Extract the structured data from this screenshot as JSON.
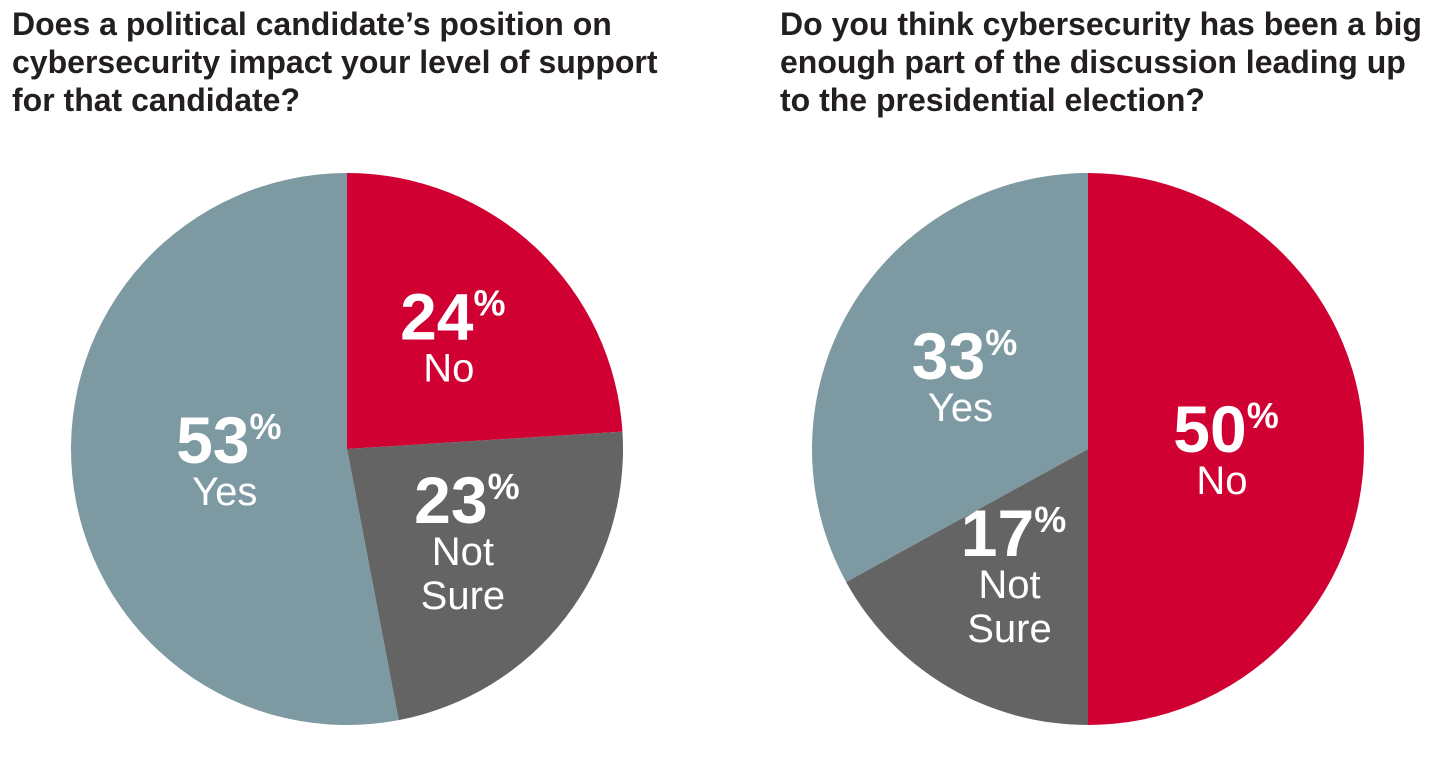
{
  "chart_data": [
    {
      "type": "pie",
      "title_lines": [
        "Does a political candidate’s position on",
        "cybersecurity impact your level of support",
        "for that candidate?"
      ],
      "slices": [
        {
          "label": "No",
          "label_lines": [
            "No"
          ],
          "value": 24,
          "value_text": "24",
          "unit": "%",
          "color": "#d10033"
        },
        {
          "label": "Not Sure",
          "label_lines": [
            "Not",
            "Sure"
          ],
          "value": 23,
          "value_text": "23",
          "unit": "%",
          "color": "#646464"
        },
        {
          "label": "Yes",
          "label_lines": [
            "Yes"
          ],
          "value": 53,
          "value_text": "53",
          "unit": "%",
          "color": "#7d99a2"
        }
      ],
      "start": "12 o'clock",
      "direction": "clockwise"
    },
    {
      "type": "pie",
      "title_lines": [
        "Do you think cybersecurity has been a big",
        "enough part of the discussion leading up",
        "to the presidential election?"
      ],
      "slices": [
        {
          "label": "No",
          "label_lines": [
            "No"
          ],
          "value": 50,
          "value_text": "50",
          "unit": "%",
          "color": "#d10033"
        },
        {
          "label": "Not Sure",
          "label_lines": [
            "Not",
            "Sure"
          ],
          "value": 17,
          "value_text": "17",
          "unit": "%",
          "color": "#646464"
        },
        {
          "label": "Yes",
          "label_lines": [
            "Yes"
          ],
          "value": 33,
          "value_text": "33",
          "unit": "%",
          "color": "#7d99a2"
        }
      ],
      "start": "12 o'clock",
      "direction": "clockwise"
    }
  ]
}
